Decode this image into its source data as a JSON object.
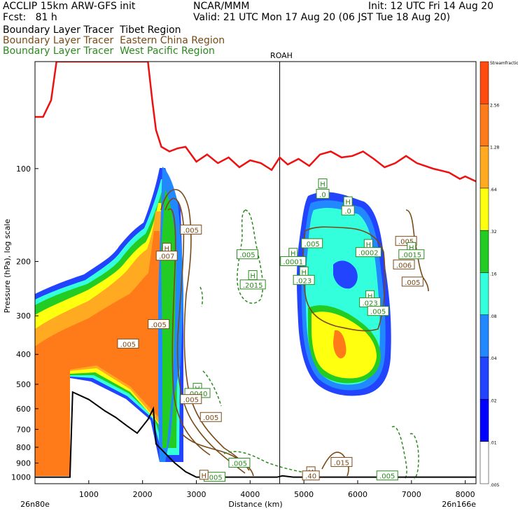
{
  "header": {
    "line1_left": "ACCLIP 15km ARW-GFS init",
    "line1_center": "NCAR/MMM",
    "line1_right": "Init: 12 UTC Fri 14 Aug 20",
    "line2_left": "Fcst:   81 h",
    "line2_right": "Valid: 21 UTC Mon 17 Aug 20 (06 JST Tue 18 Aug 20)",
    "legend": [
      {
        "text": "Boundary Layer Tracer  Tibet Region",
        "color": "#000000"
      },
      {
        "text": "Boundary Layer Tracer  Eastern China Region",
        "color": "#7a4a16"
      },
      {
        "text": "Boundary Layer Tracer  West Pacific Region",
        "color": "#2a8a1e"
      }
    ]
  },
  "chart_data": {
    "type": "cross-section",
    "xlabel": "Distance (km)",
    "ylabel": "Pressure (hPa), log scale",
    "x_ticks": [
      1000,
      2000,
      3000,
      4000,
      5000,
      6000,
      7000,
      8000
    ],
    "y_ticks": [
      100,
      200,
      300,
      400,
      500,
      600,
      700,
      800,
      900,
      1000
    ],
    "xlim": [
      0,
      8200
    ],
    "ylim": [
      1050,
      45
    ],
    "y_scale": "log",
    "left_endpoint": "26n80e",
    "right_endpoint": "26n166e",
    "marker": {
      "label": "ROAH",
      "x": 4550
    },
    "colorbar": {
      "levels": [
        "Streamfraction",
        "2.56",
        "1.28",
        ".64",
        ".32",
        ".16",
        ".08",
        ".04",
        ".02",
        ".01",
        ".005"
      ],
      "colors": [
        "#ff4a10",
        "#ff7a18",
        "#ffaa20",
        "#ffff10",
        "#22cc22",
        "#33ffdd",
        "#2288ff",
        "#2244ff",
        "#0000ff",
        "#ffffff"
      ]
    },
    "tropopause": [
      [
        0,
        68
      ],
      [
        150,
        68
      ],
      [
        300,
        60
      ],
      [
        400,
        45
      ],
      [
        1500,
        45
      ],
      [
        2100,
        45
      ],
      [
        2180,
        60
      ],
      [
        2250,
        75
      ],
      [
        2350,
        85
      ],
      [
        2500,
        88
      ],
      [
        2650,
        86
      ],
      [
        2800,
        85
      ],
      [
        3000,
        95
      ],
      [
        3200,
        90
      ],
      [
        3400,
        96
      ],
      [
        3600,
        92
      ],
      [
        3800,
        99
      ],
      [
        4000,
        94
      ],
      [
        4200,
        96
      ],
      [
        4400,
        101
      ],
      [
        4550,
        92
      ],
      [
        4700,
        97
      ],
      [
        4900,
        93
      ],
      [
        5100,
        98
      ],
      [
        5300,
        90
      ],
      [
        5500,
        88
      ],
      [
        5700,
        92
      ],
      [
        5900,
        91
      ],
      [
        6100,
        88
      ],
      [
        6300,
        93
      ],
      [
        6500,
        99
      ],
      [
        6700,
        96
      ],
      [
        6900,
        91
      ],
      [
        7100,
        96
      ],
      [
        7400,
        100
      ],
      [
        7700,
        103
      ],
      [
        7900,
        108
      ],
      [
        8000,
        106
      ],
      [
        8200,
        110
      ]
    ],
    "terrain": [
      [
        0,
        1000
      ],
      [
        650,
        1000
      ],
      [
        700,
        530
      ],
      [
        1000,
        560
      ],
      [
        1300,
        610
      ],
      [
        1500,
        640
      ],
      [
        1700,
        680
      ],
      [
        1900,
        720
      ],
      [
        2100,
        650
      ],
      [
        2200,
        600
      ],
      [
        2250,
        780
      ],
      [
        2400,
        830
      ],
      [
        2600,
        900
      ],
      [
        2800,
        960
      ],
      [
        3000,
        1000
      ],
      [
        4500,
        1000
      ],
      [
        4600,
        990
      ],
      [
        4800,
        1000
      ],
      [
        8200,
        1000
      ]
    ],
    "labels": [
      {
        "text": ".005",
        "x": 2900,
        "p": 158,
        "color": "#7a4a16"
      },
      {
        "text": "H",
        "x": 2450,
        "p": 181,
        "color": "#7a4a16"
      },
      {
        "text": ".007",
        "x": 2450,
        "p": 192,
        "color": "#7a4a16"
      },
      {
        "text": ".005",
        "x": 2300,
        "p": 320,
        "color": "#7a4a16"
      },
      {
        "text": ".005",
        "x": 1730,
        "p": 370,
        "color": "#7a4a16"
      },
      {
        "text": "H",
        "x": 3020,
        "p": 515,
        "color": "#2a8a1e"
      },
      {
        "text": ".0040",
        "x": 3020,
        "p": 535,
        "color": "#2a8a1e"
      },
      {
        "text": ".005",
        "x": 2900,
        "p": 560,
        "color": "#7a4a16"
      },
      {
        "text": ".005",
        "x": 3270,
        "p": 640,
        "color": "#7a4a16"
      },
      {
        "text": ".005",
        "x": 3800,
        "p": 900,
        "color": "#2a8a1e"
      },
      {
        "text": ".005",
        "x": 3340,
        "p": 1000,
        "color": "#2a8a1e"
      },
      {
        "text": "H",
        "x": 3140,
        "p": 985,
        "color": "#7a4a16"
      },
      {
        "text": ".005",
        "x": 3950,
        "p": 190,
        "color": "#2a8a1e"
      },
      {
        "text": "H",
        "x": 4050,
        "p": 222,
        "color": "#2a8a1e"
      },
      {
        "text": ".2015",
        "x": 4050,
        "p": 238,
        "color": "#2a8a1e"
      },
      {
        "text": "H",
        "x": 5350,
        "p": 112,
        "color": "#2a8a1e"
      },
      {
        "text": ".0",
        "x": 5350,
        "p": 121,
        "color": "#2a8a1e"
      },
      {
        "text": "H",
        "x": 5820,
        "p": 128,
        "color": "#2a8a1e"
      },
      {
        "text": ".0",
        "x": 5820,
        "p": 137,
        "color": "#2a8a1e"
      },
      {
        "text": ".005",
        "x": 5150,
        "p": 175,
        "color": "#2a8a1e"
      },
      {
        "text": "H",
        "x": 4800,
        "p": 188,
        "color": "#2a8a1e"
      },
      {
        "text": ".0001",
        "x": 4800,
        "p": 200,
        "color": "#2a8a1e"
      },
      {
        "text": "H",
        "x": 5000,
        "p": 216,
        "color": "#2a8a1e"
      },
      {
        "text": ".023",
        "x": 5000,
        "p": 230,
        "color": "#2a8a1e"
      },
      {
        "text": "H",
        "x": 6200,
        "p": 176,
        "color": "#2a8a1e"
      },
      {
        "text": ".0002",
        "x": 6200,
        "p": 187,
        "color": "#2a8a1e"
      },
      {
        "text": "H",
        "x": 6230,
        "p": 258,
        "color": "#2a8a1e"
      },
      {
        "text": ".023",
        "x": 6230,
        "p": 272,
        "color": "#2a8a1e"
      },
      {
        "text": ".005",
        "x": 6380,
        "p": 290,
        "color": "#2a8a1e"
      },
      {
        "text": ".005",
        "x": 6900,
        "p": 172,
        "color": "#7a4a16"
      },
      {
        "text": "H",
        "x": 7000,
        "p": 180,
        "color": "#2a8a1e"
      },
      {
        "text": ".0015",
        "x": 7000,
        "p": 190,
        "color": "#2a8a1e"
      },
      {
        "text": ".006",
        "x": 6860,
        "p": 205,
        "color": "#7a4a16"
      },
      {
        "text": ".005",
        "x": 7020,
        "p": 233,
        "color": "#7a4a16"
      },
      {
        "text": "H",
        "x": 5130,
        "p": 960,
        "color": "#7a4a16"
      },
      {
        "text": ".40",
        "x": 5130,
        "p": 990,
        "color": "#7a4a16"
      },
      {
        "text": ".015",
        "x": 5700,
        "p": 895,
        "color": "#7a4a16"
      },
      {
        "text": ".005",
        "x": 6550,
        "p": 990,
        "color": "#2a8a1e"
      }
    ]
  }
}
